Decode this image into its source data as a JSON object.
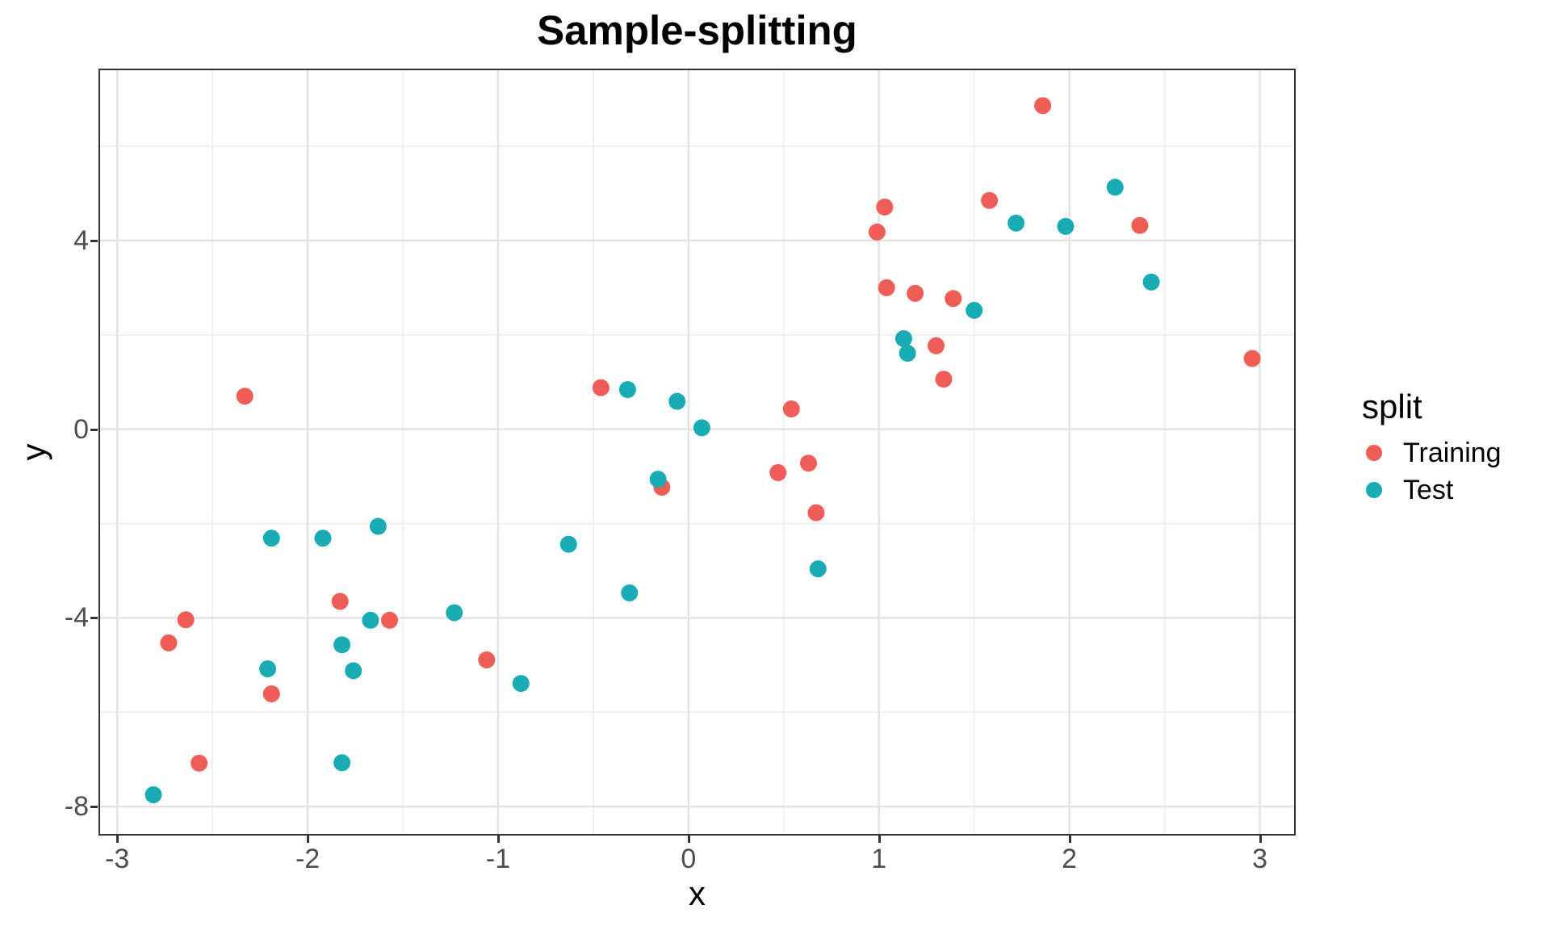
{
  "title": "Sample-splitting",
  "axes": {
    "x_label": "x",
    "y_label": "y",
    "x_tick_labels": [
      "-3",
      "-2",
      "-1",
      "0",
      "1",
      "2",
      "3"
    ],
    "y_tick_labels": [
      "4",
      "0",
      "-4",
      "-8"
    ]
  },
  "legend": {
    "title": "split",
    "items": [
      {
        "label": "Training",
        "color": "#F05C56"
      },
      {
        "label": "Test",
        "color": "#1AACB4"
      }
    ]
  },
  "colors": {
    "grid_major": "#E3E3E3",
    "grid_minor": "#EDEDED",
    "panel_border": "#333333",
    "tick_mark": "#333333",
    "tick_label": "#4D4D4D",
    "training": "#F05C56",
    "test": "#1AACB4"
  },
  "chart_data": {
    "type": "scatter",
    "title": "Sample-splitting",
    "xlabel": "x",
    "ylabel": "y",
    "xlim": [
      -3.09,
      3.18
    ],
    "ylim": [
      -8.58,
      7.61
    ],
    "x_ticks": [
      -3,
      -2,
      -1,
      0,
      1,
      2,
      3
    ],
    "y_ticks": [
      4,
      0,
      -4,
      -8
    ],
    "x_minor": [
      -2.5,
      -1.5,
      -0.5,
      0.5,
      1.5,
      2.5
    ],
    "y_minor": [
      6,
      2,
      -2,
      -6
    ],
    "grid": true,
    "legend_position": "right",
    "point_radius": 10.5,
    "series": [
      {
        "name": "Training",
        "color": "#F05C56",
        "points": [
          [
            -2.73,
            -4.53
          ],
          [
            -2.64,
            -4.04
          ],
          [
            -2.57,
            -7.08
          ],
          [
            -2.33,
            0.7
          ],
          [
            -2.19,
            -5.61
          ],
          [
            -1.83,
            -3.65
          ],
          [
            -1.57,
            -4.05
          ],
          [
            -1.06,
            -4.89
          ],
          [
            -0.46,
            0.88
          ],
          [
            -0.14,
            -1.23
          ],
          [
            0.47,
            -0.92
          ],
          [
            0.54,
            0.43
          ],
          [
            0.63,
            -0.72
          ],
          [
            0.67,
            -1.77
          ],
          [
            0.99,
            4.18
          ],
          [
            1.03,
            4.71
          ],
          [
            1.04,
            3.0
          ],
          [
            1.19,
            2.88
          ],
          [
            1.3,
            1.77
          ],
          [
            1.34,
            1.06
          ],
          [
            1.39,
            2.77
          ],
          [
            1.58,
            4.85
          ],
          [
            1.86,
            6.86
          ],
          [
            2.37,
            4.32
          ],
          [
            2.96,
            1.5
          ]
        ]
      },
      {
        "name": "Test",
        "color": "#1AACB4",
        "points": [
          [
            -2.81,
            -7.75
          ],
          [
            -2.21,
            -5.08
          ],
          [
            -2.19,
            -2.31
          ],
          [
            -1.92,
            -2.31
          ],
          [
            -1.82,
            -4.57
          ],
          [
            -1.82,
            -7.07
          ],
          [
            -1.76,
            -5.12
          ],
          [
            -1.67,
            -4.05
          ],
          [
            -1.63,
            -2.06
          ],
          [
            -1.23,
            -3.89
          ],
          [
            -0.88,
            -5.39
          ],
          [
            -0.63,
            -2.44
          ],
          [
            -0.32,
            0.84
          ],
          [
            -0.31,
            -3.47
          ],
          [
            -0.16,
            -1.06
          ],
          [
            -0.06,
            0.59
          ],
          [
            0.07,
            0.03
          ],
          [
            0.68,
            -2.96
          ],
          [
            1.13,
            1.92
          ],
          [
            1.15,
            1.61
          ],
          [
            1.5,
            2.52
          ],
          [
            1.72,
            4.37
          ],
          [
            1.98,
            4.3
          ],
          [
            2.24,
            5.13
          ],
          [
            2.43,
            3.12
          ]
        ]
      }
    ]
  }
}
